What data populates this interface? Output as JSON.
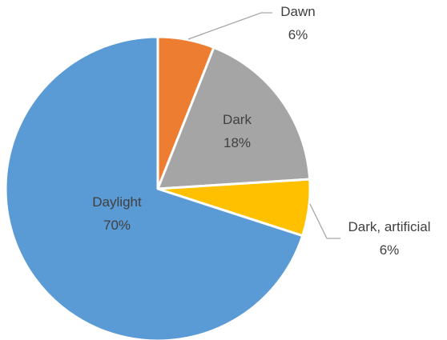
{
  "chart_data": {
    "type": "pie",
    "title": "",
    "start_angle_deg": 0,
    "direction": "clockwise",
    "legend": "none",
    "slices": [
      {
        "label": "Dawn",
        "value": 6,
        "display": "6%",
        "color": "#ed7d31"
      },
      {
        "label": "Dark",
        "value": 18,
        "display": "18%",
        "color": "#a5a5a5"
      },
      {
        "label": "Dark, artificial",
        "value": 6,
        "display": "6%",
        "color": "#ffc000"
      },
      {
        "label": "Daylight",
        "value": 70,
        "display": "70%",
        "color": "#5b9bd5"
      }
    ]
  }
}
